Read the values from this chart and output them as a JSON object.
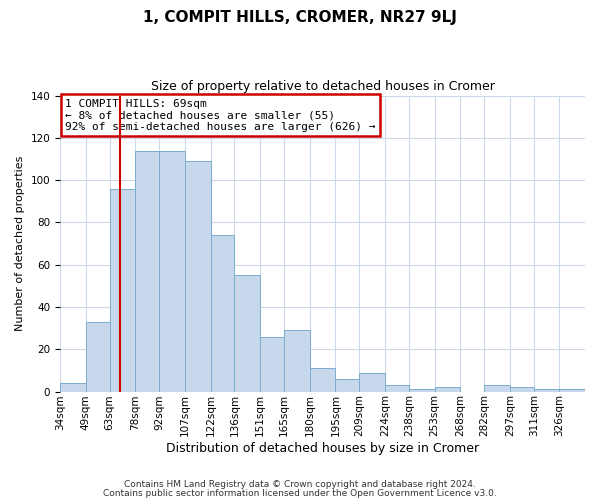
{
  "title": "1, COMPIT HILLS, CROMER, NR27 9LJ",
  "subtitle": "Size of property relative to detached houses in Cromer",
  "xlabel": "Distribution of detached houses by size in Cromer",
  "ylabel": "Number of detached properties",
  "bin_labels": [
    "34sqm",
    "49sqm",
    "63sqm",
    "78sqm",
    "92sqm",
    "107sqm",
    "122sqm",
    "136sqm",
    "151sqm",
    "165sqm",
    "180sqm",
    "195sqm",
    "209sqm",
    "224sqm",
    "238sqm",
    "253sqm",
    "268sqm",
    "282sqm",
    "297sqm",
    "311sqm",
    "326sqm"
  ],
  "bin_edges": [
    34,
    49,
    63,
    78,
    92,
    107,
    122,
    136,
    151,
    165,
    180,
    195,
    209,
    224,
    238,
    253,
    268,
    282,
    297,
    311,
    326
  ],
  "bar_heights": [
    4,
    33,
    96,
    114,
    114,
    109,
    74,
    55,
    26,
    29,
    11,
    6,
    9,
    3,
    1,
    2,
    0,
    3,
    2,
    1,
    1
  ],
  "bar_color": "#c8d8ec",
  "bar_edge_color": "#7aadce",
  "red_line_x": 69,
  "annotation_lines": [
    "1 COMPIT HILLS: 69sqm",
    "← 8% of detached houses are smaller (55)",
    "92% of semi-detached houses are larger (626) →"
  ],
  "annotation_box_edge": "#cc0000",
  "ylim": [
    0,
    140
  ],
  "yticks": [
    0,
    20,
    40,
    60,
    80,
    100,
    120,
    140
  ],
  "footer_line1": "Contains HM Land Registry data © Crown copyright and database right 2024.",
  "footer_line2": "Contains public sector information licensed under the Open Government Licence v3.0.",
  "background_color": "#ffffff",
  "grid_color": "#ccd9e8",
  "title_fontsize": 11,
  "subtitle_fontsize": 9,
  "xlabel_fontsize": 9,
  "ylabel_fontsize": 8,
  "tick_fontsize": 7.5,
  "footer_fontsize": 6.5,
  "annot_fontsize": 8
}
